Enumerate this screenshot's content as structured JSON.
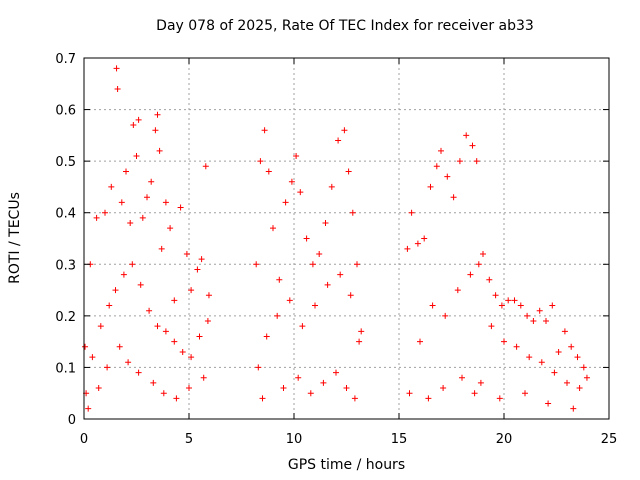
{
  "chart_data": {
    "type": "scatter",
    "title": "Day 078 of 2025, Rate Of TEC Index for receiver ab33",
    "xlabel": "GPS time / hours",
    "ylabel": "ROTI / TECUs",
    "xlim": [
      0,
      25
    ],
    "ylim": [
      0,
      0.7
    ],
    "xticks": [
      "0",
      "5",
      "10",
      "15",
      "20",
      "25"
    ],
    "yticks": [
      "0",
      "0.1",
      "0.2",
      "0.3",
      "0.4",
      "0.5",
      "0.6",
      "0.7"
    ],
    "grid": true,
    "marker": "+",
    "color": "#ff0000",
    "series": [
      {
        "x": [
          0.05,
          0.3,
          0.6,
          1.0,
          1.3,
          1.55,
          1.6,
          1.8,
          2.0,
          2.2,
          2.35,
          2.5,
          2.6,
          2.8,
          3.0,
          3.2,
          3.4,
          3.5,
          3.6,
          3.7,
          3.9,
          4.1,
          4.3,
          4.6,
          4.9,
          5.1,
          5.4,
          5.6,
          5.8,
          5.95,
          0.1,
          0.4,
          0.8,
          1.2,
          1.5,
          1.9,
          2.3,
          2.7,
          3.1,
          3.5,
          3.9,
          4.3,
          4.7,
          5.1,
          5.5,
          5.9,
          0.2,
          0.7,
          1.1,
          1.7,
          2.1,
          2.6,
          3.3,
          3.8,
          4.4,
          5.0,
          5.7,
          8.2,
          8.4,
          8.6,
          8.8,
          9.0,
          9.3,
          9.6,
          9.9,
          10.1,
          10.3,
          10.6,
          10.9,
          11.2,
          11.5,
          11.8,
          12.1,
          12.4,
          12.6,
          12.8,
          13.0,
          13.2,
          8.3,
          8.7,
          9.2,
          9.8,
          10.4,
          11.0,
          11.6,
          12.2,
          12.7,
          13.1,
          8.5,
          9.5,
          10.2,
          10.8,
          11.4,
          12.0,
          12.5,
          12.9,
          15.4,
          15.6,
          15.9,
          16.2,
          16.5,
          16.8,
          17.0,
          17.3,
          17.6,
          17.9,
          18.2,
          18.5,
          18.7,
          19.0,
          19.3,
          19.6,
          19.9,
          20.2,
          20.5,
          20.8,
          21.1,
          21.4,
          21.7,
          22.0,
          22.3,
          22.6,
          22.9,
          23.2,
          23.5,
          23.8,
          23.95,
          15.5,
          16.0,
          16.6,
          17.2,
          17.8,
          18.4,
          18.8,
          19.4,
          20.0,
          20.6,
          21.2,
          21.8,
          22.4,
          23.0,
          23.6,
          16.4,
          17.1,
          18.0,
          18.6,
          18.9,
          19.8,
          21.0,
          22.1,
          23.3
        ],
        "y": [
          0.14,
          0.3,
          0.39,
          0.4,
          0.45,
          0.68,
          0.64,
          0.42,
          0.48,
          0.38,
          0.57,
          0.51,
          0.58,
          0.39,
          0.43,
          0.46,
          0.56,
          0.59,
          0.52,
          0.33,
          0.42,
          0.37,
          0.23,
          0.41,
          0.32,
          0.25,
          0.29,
          0.31,
          0.49,
          0.24,
          0.05,
          0.12,
          0.18,
          0.22,
          0.25,
          0.28,
          0.3,
          0.26,
          0.21,
          0.18,
          0.17,
          0.15,
          0.13,
          0.12,
          0.16,
          0.19,
          0.02,
          0.06,
          0.1,
          0.14,
          0.11,
          0.09,
          0.07,
          0.05,
          0.04,
          0.06,
          0.08,
          0.3,
          0.5,
          0.56,
          0.48,
          0.37,
          0.27,
          0.42,
          0.46,
          0.51,
          0.44,
          0.35,
          0.3,
          0.32,
          0.38,
          0.45,
          0.54,
          0.56,
          0.48,
          0.4,
          0.3,
          0.17,
          0.1,
          0.16,
          0.2,
          0.23,
          0.18,
          0.22,
          0.26,
          0.28,
          0.24,
          0.15,
          0.04,
          0.06,
          0.08,
          0.05,
          0.07,
          0.09,
          0.06,
          0.04,
          0.33,
          0.4,
          0.34,
          0.35,
          0.45,
          0.49,
          0.52,
          0.47,
          0.43,
          0.5,
          0.55,
          0.53,
          0.5,
          0.32,
          0.27,
          0.24,
          0.22,
          0.23,
          0.23,
          0.22,
          0.2,
          0.19,
          0.21,
          0.19,
          0.22,
          0.13,
          0.17,
          0.14,
          0.12,
          0.1,
          0.08,
          0.05,
          0.15,
          0.22,
          0.2,
          0.25,
          0.28,
          0.3,
          0.18,
          0.15,
          0.14,
          0.12,
          0.11,
          0.09,
          0.07,
          0.06,
          0.04,
          0.06,
          0.08,
          0.05,
          0.07,
          0.04,
          0.05,
          0.03,
          0.02
        ]
      }
    ]
  }
}
